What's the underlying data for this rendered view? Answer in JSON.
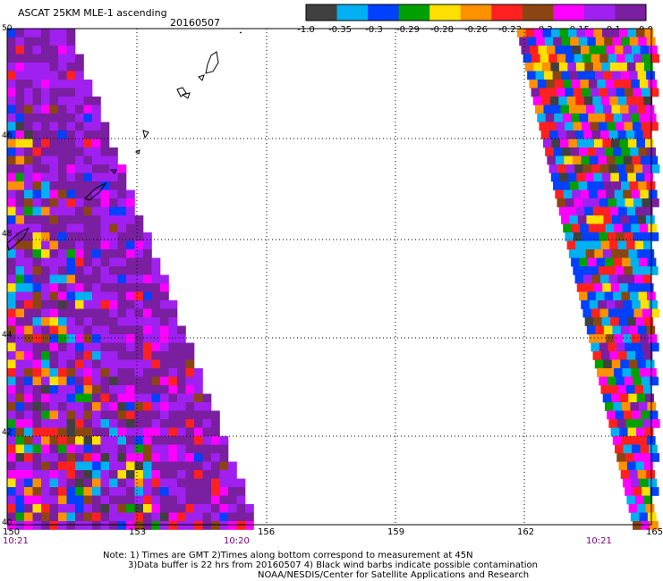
{
  "header": {
    "title": "ASCAT 25KM MLE-1 ascending",
    "date": "20160507"
  },
  "colorbar": {
    "labels": [
      "-1.0",
      "-0.35",
      "-0.3",
      "-0.29",
      "-0.28",
      "-0.26",
      "-0.23",
      "-0.2",
      "-0.15",
      "-0.1",
      "0.0"
    ],
    "colors": [
      "#404040",
      "#00b0f0",
      "#0040ff",
      "#00a000",
      "#ffe000",
      "#ff9000",
      "#ff2020",
      "#8b4513",
      "#ff00ff",
      "#a020f0",
      "#7a1fa0"
    ]
  },
  "axes": {
    "x_ticks": [
      "150",
      "153",
      "156",
      "159",
      "162",
      "165"
    ],
    "y_ticks": [
      "50",
      "48",
      "46",
      "44",
      "42",
      "40"
    ]
  },
  "times": {
    "left": "10:21",
    "mid": "10:20",
    "right": "10:21"
  },
  "notes": {
    "line1": "Note: 1) Times are GMT 2)Times along bottom correspond to measurement at 45N",
    "line2": "3)Data buffer is 22 hrs from 20160507 4) Black wind barbs indicate possible contamination",
    "line3": "NOAA/NESDIS/Center for Satellite Applications and Research"
  }
}
